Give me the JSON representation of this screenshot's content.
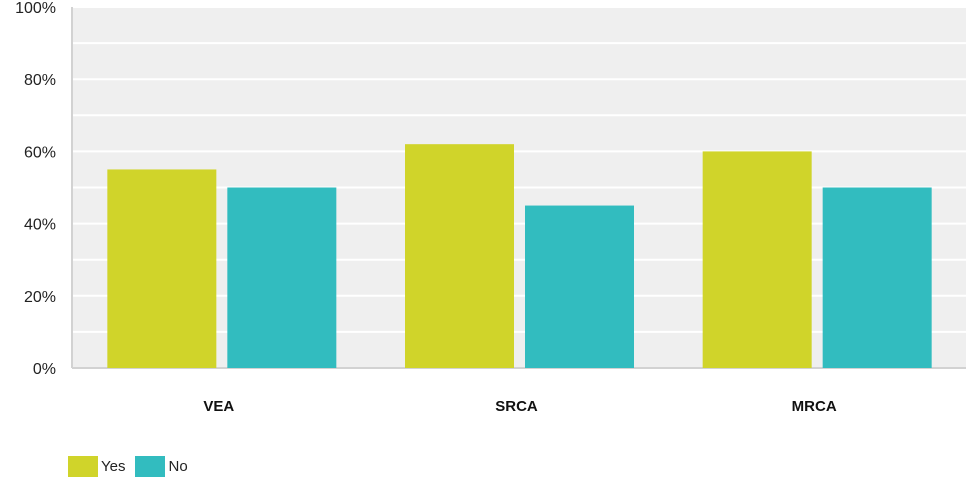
{
  "chart_data": {
    "type": "bar",
    "categories": [
      "VEA",
      "SRCA",
      "MRCA"
    ],
    "series": [
      {
        "name": "Yes",
        "values": [
          55,
          62,
          60
        ],
        "color": "#d0d42a"
      },
      {
        "name": "No",
        "values": [
          50,
          45,
          50
        ],
        "color": "#32bcbf"
      }
    ],
    "ylim": [
      0,
      100
    ],
    "yticks": [
      "0%",
      "20%",
      "40%",
      "60%",
      "80%",
      "100%"
    ],
    "ytick_values": [
      0,
      20,
      40,
      60,
      80,
      100
    ],
    "minor_gridlines": true,
    "grid": true,
    "legend": "bottom-left",
    "plot_background": "#efefef",
    "gridline_color": "#ffffff",
    "title": "",
    "xlabel": "",
    "ylabel": ""
  }
}
